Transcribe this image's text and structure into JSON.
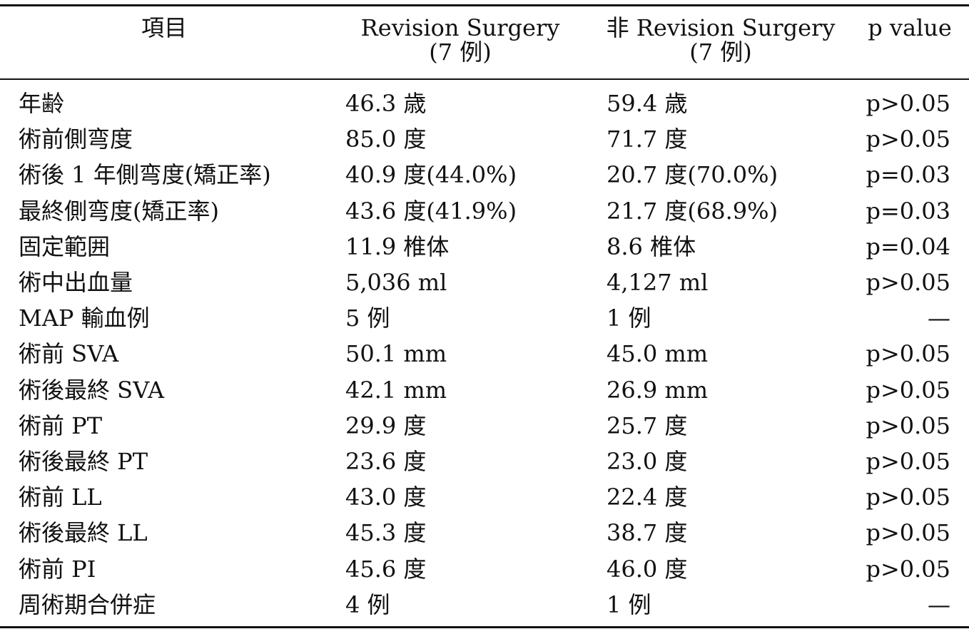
{
  "header": {
    "col_item": "項目",
    "col_revision": "Revision Surgery",
    "col_revision_n": "(7 例)",
    "col_nonrevision": "非 Revision Surgery",
    "col_nonrevision_n": "(7 例)",
    "col_pvalue": "p value"
  },
  "rows": [
    {
      "item": "年齢",
      "revision": "46.3 歳",
      "nonrevision": "59.4 歳",
      "p": "p>0.05"
    },
    {
      "item": "術前側弯度",
      "revision": "85.0 度",
      "nonrevision": "71.7 度",
      "p": "p>0.05"
    },
    {
      "item": "術後 1 年側弯度(矯正率)",
      "revision": "40.9 度(44.0%)",
      "nonrevision": "20.7 度(70.0%)",
      "p": "p=0.03"
    },
    {
      "item": "最終側弯度(矯正率)",
      "revision": "43.6 度(41.9%)",
      "nonrevision": "21.7 度(68.9%)",
      "p": "p=0.03"
    },
    {
      "item": "固定範囲",
      "revision": "11.9 椎体",
      "nonrevision": "8.6 椎体",
      "p": "p=0.04"
    },
    {
      "item": "術中出血量",
      "revision": "5,036 ml",
      "nonrevision": "4,127 ml",
      "p": "p>0.05"
    },
    {
      "item": "MAP 輸血例",
      "revision": "5 例",
      "nonrevision": "1 例",
      "p": "—"
    },
    {
      "item": "術前 SVA",
      "revision": "50.1 mm",
      "nonrevision": "45.0 mm",
      "p": "p>0.05"
    },
    {
      "item": "術後最終 SVA",
      "revision": "42.1 mm",
      "nonrevision": "26.9 mm",
      "p": "p>0.05"
    },
    {
      "item": "術前 PT",
      "revision": "29.9 度",
      "nonrevision": "25.7 度",
      "p": "p>0.05"
    },
    {
      "item": "術後最終 PT",
      "revision": "23.6 度",
      "nonrevision": "23.0 度",
      "p": "p>0.05"
    },
    {
      "item": "術前 LL",
      "revision": "43.0 度",
      "nonrevision": "22.4 度",
      "p": "p>0.05"
    },
    {
      "item": "術後最終 LL",
      "revision": "45.3 度",
      "nonrevision": "38.7 度",
      "p": "p>0.05"
    },
    {
      "item": "術前 PI",
      "revision": "45.6 度",
      "nonrevision": "46.0 度",
      "p": "p>0.05"
    },
    {
      "item": "周術期合併症",
      "revision": "4 例",
      "nonrevision": "1 例",
      "p": "—"
    }
  ]
}
